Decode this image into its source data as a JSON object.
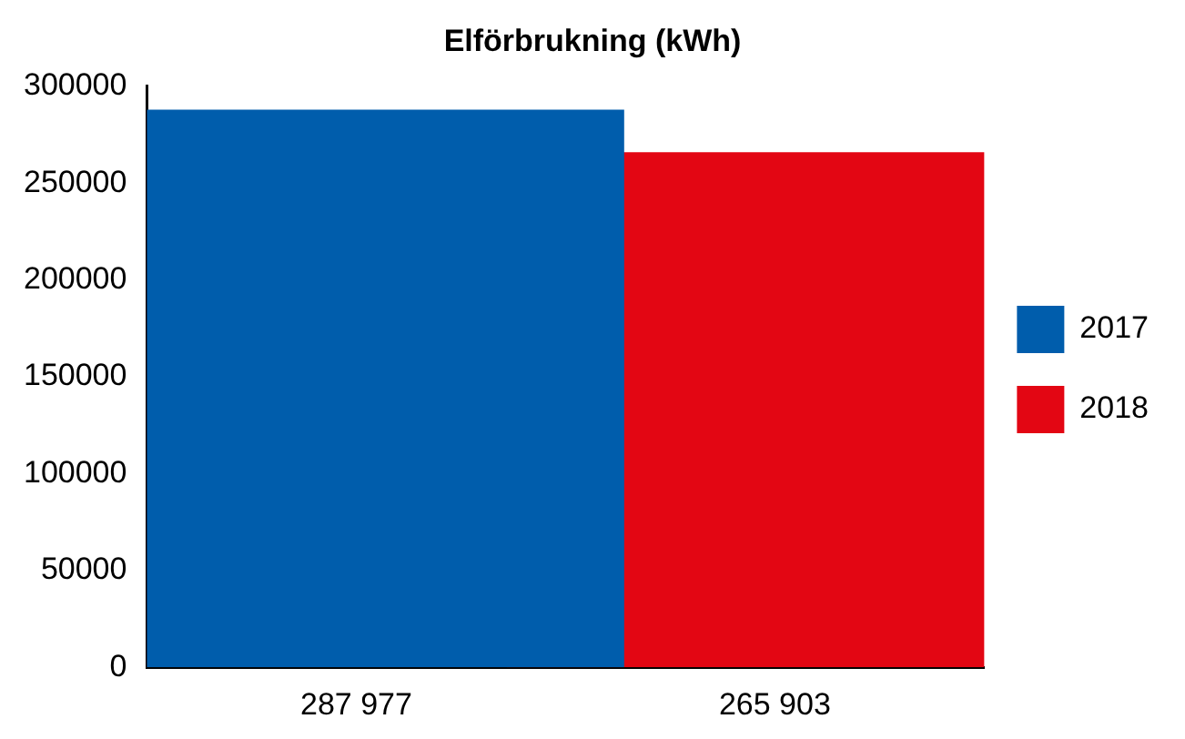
{
  "chart_data": {
    "type": "bar",
    "title": "Elförbrukning (kWh)",
    "categories": [
      "287 977",
      "265 903"
    ],
    "series": [
      {
        "name": "2017",
        "color": "#005dac",
        "values": [
          287977,
          null
        ]
      },
      {
        "name": "2018",
        "color": "#e30613",
        "values": [
          null,
          265903
        ]
      }
    ],
    "ylim": [
      0,
      300000
    ],
    "yticks": [
      0,
      50000,
      100000,
      150000,
      200000,
      250000,
      300000
    ],
    "grid": false,
    "legend": "right"
  }
}
